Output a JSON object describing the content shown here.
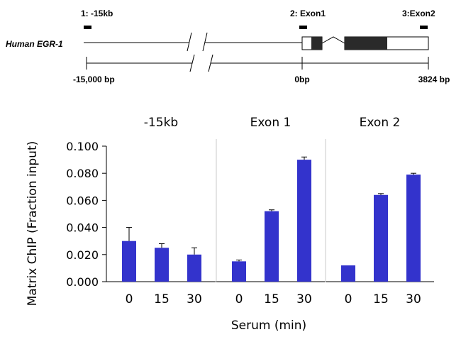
{
  "gene_diagram": {
    "gene_label": "Human EGR-1",
    "probes": [
      {
        "label": "1: -15kb"
      },
      {
        "label": "2: Exon1"
      },
      {
        "label": "3:Exon2"
      }
    ],
    "scale_labels": [
      "-15,000  bp",
      "0bp",
      "3824 bp"
    ]
  },
  "chart_data": [
    {
      "type": "bar",
      "title": "-15kb",
      "categories": [
        "0",
        "15",
        "30"
      ],
      "values": [
        0.03,
        0.025,
        0.02
      ],
      "errors": [
        0.01,
        0.003,
        0.005
      ],
      "ylim": [
        0,
        0.1
      ],
      "ylabel": "Matrix ChIP (Fraction input)",
      "xlabel": "Serum (min)",
      "yticks": [
        "0.000",
        "0.020",
        "0.040",
        "0.060",
        "0.080",
        "0.100"
      ]
    },
    {
      "type": "bar",
      "title": "Exon 1",
      "categories": [
        "0",
        "15",
        "30"
      ],
      "values": [
        0.015,
        0.052,
        0.09
      ],
      "errors": [
        0.001,
        0.001,
        0.002
      ],
      "ylim": [
        0,
        0.1
      ]
    },
    {
      "type": "bar",
      "title": "Exon 2",
      "categories": [
        "0",
        "15",
        "30"
      ],
      "values": [
        0.012,
        0.064,
        0.079
      ],
      "errors": [
        0.0,
        0.001,
        0.001
      ],
      "ylim": [
        0,
        0.1
      ]
    }
  ],
  "colors": {
    "bar": "#3333cc",
    "axis": "#000000",
    "panel_line": "#c8c8c8"
  }
}
